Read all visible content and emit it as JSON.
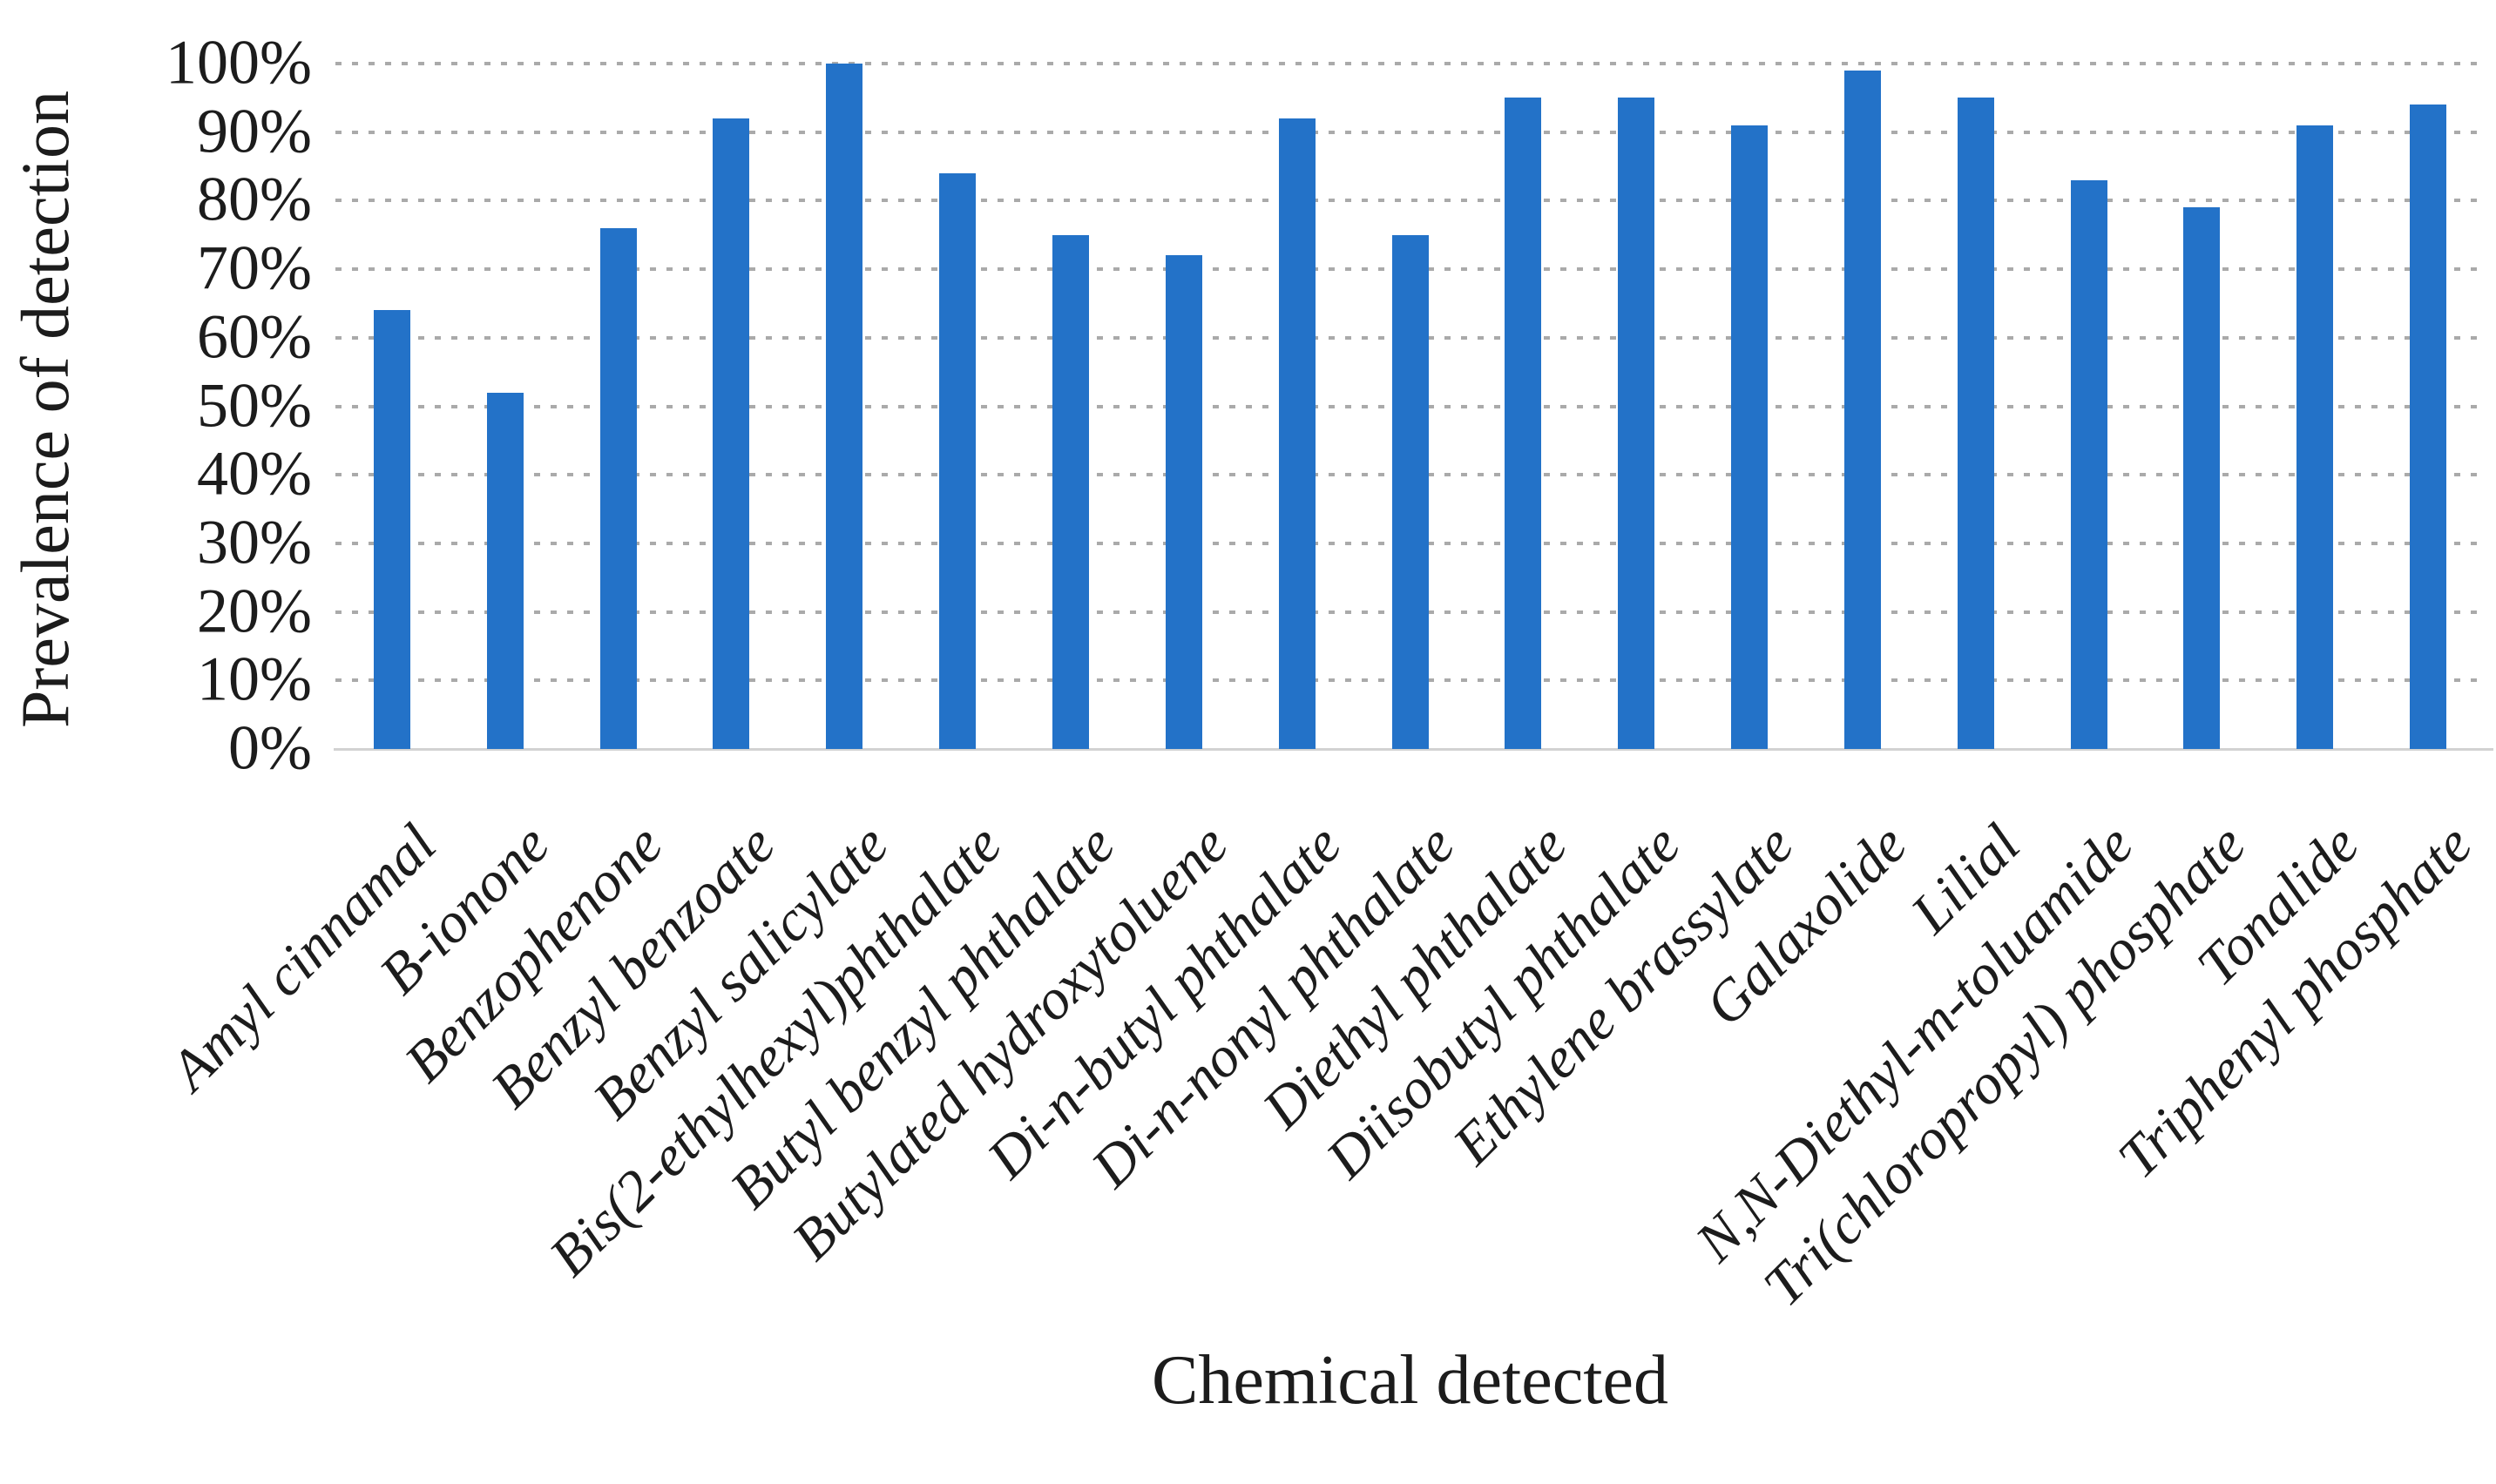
{
  "chart_data": {
    "type": "bar",
    "title": "",
    "xlabel": "Chemical detected",
    "ylabel": "Prevalence of detection",
    "ylim": [
      0,
      100
    ],
    "ytick_step": 10,
    "ytick_labels": [
      "0%",
      "10%",
      "20%",
      "30%",
      "40%",
      "50%",
      "60%",
      "70%",
      "80%",
      "90%",
      "100%"
    ],
    "grid": "dotted-horizontal",
    "legend_position": "none",
    "bar_color": "#2372C8",
    "gridline_color": "#aaaaaa",
    "axis_line_color": "#d2d2d2",
    "categories": [
      "Amyl cinnamal",
      "B-ionone",
      "Benzophenone",
      "Benzyl benzoate",
      "Benzyl salicylate",
      "Bis(2-ethylhexyl)phthalate",
      "Butyl benzyl phthalate",
      "Butylated hydroxytoluene",
      "Di-n-butyl phthalate",
      "Di-n-nonyl phthalate",
      "Diethyl phthalate",
      "Diisobutyl phthalate",
      "Ethylene brassylate",
      "Galaxolide",
      "Lilial",
      "N,N-Diethyl-m-toluamide",
      "Tri(chloropropyl) phosphate",
      "Tonalide",
      "Triphenyl phosphate"
    ],
    "values": [
      64,
      52,
      76,
      92,
      100,
      84,
      75,
      72,
      92,
      75,
      95,
      95,
      91,
      99,
      95,
      83,
      79,
      91,
      94
    ]
  }
}
